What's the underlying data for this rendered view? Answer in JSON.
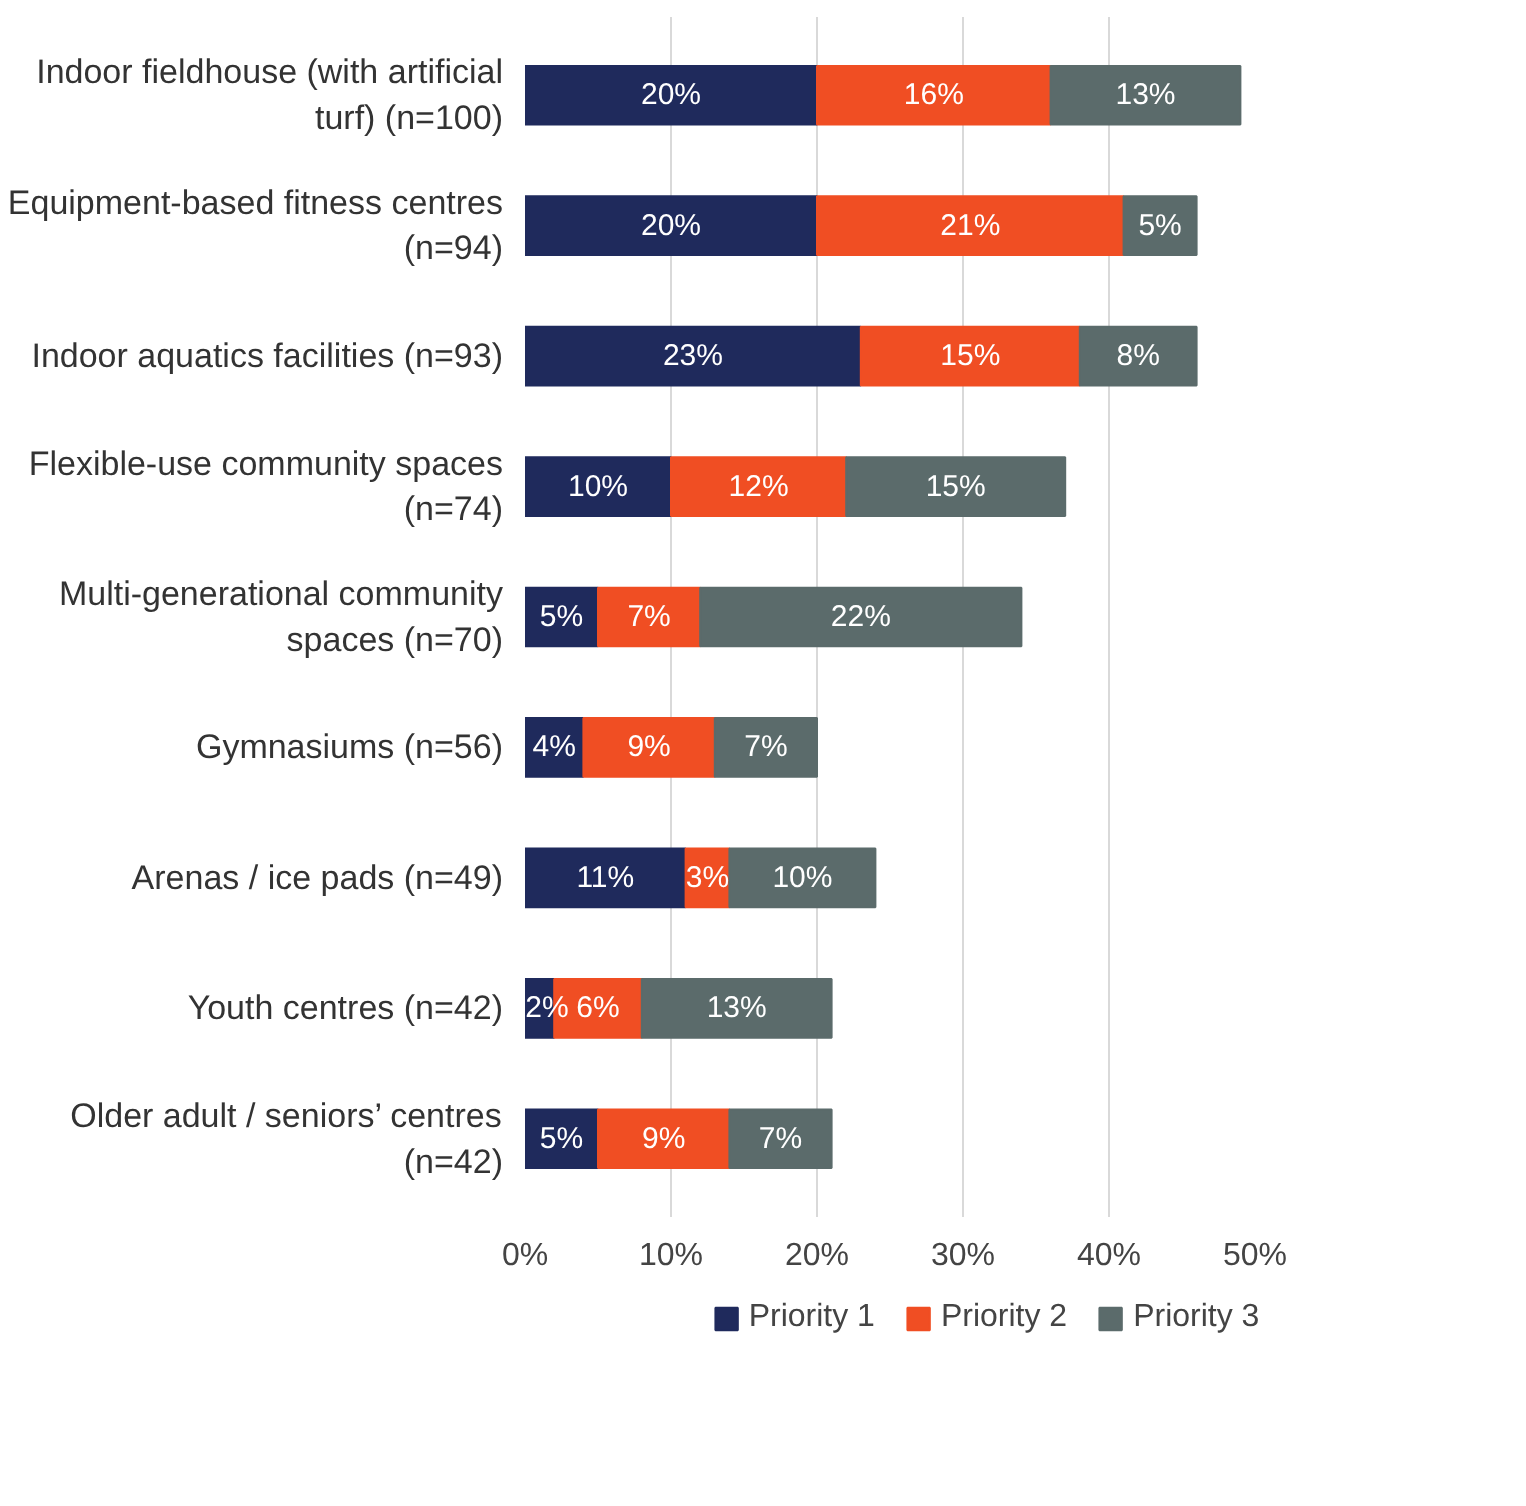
{
  "chart_data": {
    "type": "bar",
    "orientation": "horizontal",
    "stacked": true,
    "data_labels": true,
    "grid": "x",
    "legend": "bottom",
    "categories": [
      "Indoor fieldhouse (with artificial turf) (n=100)",
      "Equipment-based fitness centres (n=94)",
      "Indoor aquatics facilities (n=93)",
      "Flexible-use community spaces (n=74)",
      "Multi-generational community spaces (n=70)",
      "Gymnasiums (n=56)",
      "Arenas / ice pads (n=49)",
      "Youth centres (n=42)",
      "Older adult / seniors’ centres (n=42)"
    ],
    "xlim": [
      0,
      50
    ],
    "xticks": [
      {
        "value": 0,
        "label": "0%"
      },
      {
        "value": 10,
        "label": "10%"
      },
      {
        "value": 20,
        "label": "20%"
      },
      {
        "value": 30,
        "label": "30%"
      },
      {
        "value": 40,
        "label": "40%"
      },
      {
        "value": 50,
        "label": "50%"
      }
    ],
    "series": [
      {
        "name": "Priority 1",
        "color": "#1f2a5c",
        "values": [
          20,
          20,
          23,
          10,
          5,
          4,
          11,
          2,
          5
        ],
        "value_labels": [
          "20%",
          "20%",
          "23%",
          "10%",
          "5%",
          "4%",
          "11%",
          "2%",
          "5%"
        ]
      },
      {
        "name": "Priority 2",
        "color": "#f04e23",
        "values": [
          16,
          21,
          15,
          12,
          7,
          9,
          3,
          6,
          9
        ],
        "value_labels": [
          "16%",
          "21%",
          "15%",
          "12%",
          "7%",
          "9%",
          "3%",
          "6%",
          "9%"
        ]
      },
      {
        "name": "Priority 3",
        "color": "#5b6b6b",
        "values": [
          13,
          5,
          8,
          15,
          22,
          7,
          10,
          13,
          7
        ],
        "value_labels": [
          "13%",
          "5%",
          "8%",
          "15%",
          "22%",
          "7%",
          "10%",
          "13%",
          "7%"
        ]
      }
    ]
  }
}
